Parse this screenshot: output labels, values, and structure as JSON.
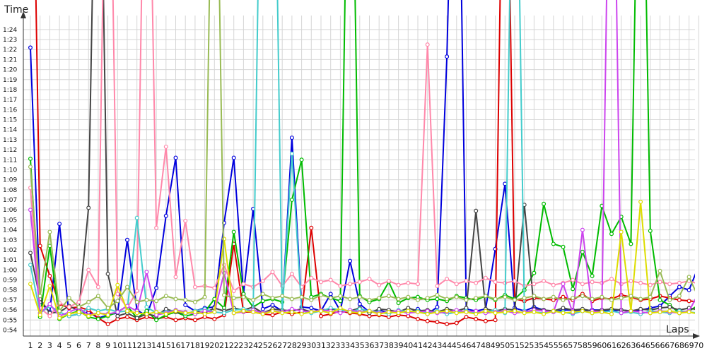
{
  "chart_data": {
    "type": "line",
    "ylabel": "Time",
    "xlabel": "Laps",
    "grid": true,
    "x_ticks": [
      "1",
      "2",
      "3",
      "4",
      "5",
      "6",
      "7",
      "8",
      "9",
      "10",
      "11",
      "12",
      "13",
      "14",
      "15",
      "16",
      "17",
      "18",
      "19",
      "20",
      "21",
      "22",
      "23",
      "24",
      "25",
      "26",
      "27",
      "28",
      "29",
      "30",
      "31",
      "32",
      "33",
      "34",
      "35",
      "36",
      "37",
      "38",
      "39",
      "40",
      "41",
      "42",
      "43",
      "44",
      "45",
      "46",
      "47",
      "48",
      "49",
      "50",
      "51",
      "52",
      "53",
      "54",
      "55",
      "56",
      "57",
      "58",
      "59",
      "60",
      "61",
      "62",
      "63",
      "64",
      "65",
      "66",
      "67",
      "68",
      "69",
      "70"
    ],
    "y_ticks": [
      "0:54",
      "0:55",
      "0:56",
      "0:57",
      "0:58",
      "0:59",
      "1:00",
      "1:01",
      "1:02",
      "1:03",
      "1:04",
      "1:05",
      "1:06",
      "1:07",
      "1:08",
      "1:09",
      "1:10",
      "1:11",
      "1:12",
      "1:13",
      "1:14",
      "1:15",
      "1:16",
      "1:17",
      "1:18",
      "1:19",
      "1:20",
      "1:21",
      "1:22",
      "1:23",
      "1:24"
    ],
    "y_range_seconds": [
      53.4,
      85.4
    ],
    "x_range": [
      1,
      70
    ],
    "series": [
      {
        "color": "#0000dd",
        "values": [
          82.2,
          56.8,
          55.8,
          64.6,
          55.4,
          55.6,
          55.8,
          55.2,
          55.5,
          55.7,
          63.0,
          56.0,
          55.4,
          58.2,
          65.4,
          71.2,
          56.5,
          55.9,
          56.2,
          56.3,
          64.7,
          71.2,
          57.6,
          66.1,
          56.1,
          56.5,
          55.9,
          73.2,
          56.3,
          56.2,
          55.9,
          57.6,
          55.9,
          60.9,
          56.6,
          55.8,
          56.0,
          55.7,
          55.9,
          55.7,
          56.1,
          55.6,
          56.3,
          81.3,
          120,
          56.1,
          55.9,
          56.1,
          62.1,
          68.6,
          56.2,
          55.9,
          56.3,
          56.0,
          55.8,
          56.0,
          56.0,
          55.9,
          56.0,
          56.0,
          55.9,
          56.0,
          55.9,
          56.0,
          56.2,
          56.4,
          57.4,
          58.3,
          58.0,
          60.4
        ]
      },
      {
        "color": "#dd0000",
        "values": [
          120,
          62.4,
          59.4,
          56.6,
          56.2,
          56.3,
          56.0,
          55.2,
          54.6,
          55.1,
          55.3,
          55.0,
          55.3,
          55.1,
          55.3,
          55.0,
          55.2,
          55.0,
          55.3,
          55.1,
          55.5,
          62.6,
          55.8,
          55.8,
          55.6,
          55.5,
          55.8,
          55.6,
          55.8,
          64.2,
          55.4,
          55.6,
          55.9,
          55.7,
          55.6,
          55.4,
          55.5,
          55.3,
          55.5,
          55.4,
          55.1,
          54.9,
          54.8,
          54.6,
          54.7,
          55.3,
          55.1,
          54.9,
          55.0,
          120,
          57.1,
          56.9,
          57.2,
          57.1,
          57.0,
          57.3,
          57.0,
          57.6,
          56.9,
          57.2,
          57.1,
          57.5,
          57.3,
          57.0,
          57.1,
          57.4,
          57.2,
          57.0,
          56.9,
          56.8
        ]
      },
      {
        "color": "#00bb00",
        "values": [
          71.1,
          55.3,
          62.4,
          55.1,
          55.6,
          55.9,
          55.3,
          55.1,
          55.4,
          55.8,
          56.4,
          55.2,
          55.9,
          55.0,
          55.5,
          55.8,
          55.4,
          55.6,
          55.8,
          57.1,
          56.2,
          63.8,
          57.6,
          56.3,
          56.9,
          57.1,
          56.8,
          67.0,
          71.0,
          57.3,
          57.6,
          57.2,
          56.9,
          120,
          57.4,
          56.8,
          57.1,
          58.8,
          56.7,
          57.2,
          57.3,
          57.0,
          57.1,
          56.9,
          57.4,
          57.2,
          57.0,
          57.4,
          57.0,
          57.5,
          57.1,
          58.0,
          59.7,
          66.6,
          62.6,
          62.3,
          58.1,
          61.8,
          59.4,
          66.4,
          63.6,
          65.3,
          62.6,
          120,
          63.9,
          57.0,
          56.5,
          55.7,
          55.9,
          56.5
        ]
      },
      {
        "color": "#444444",
        "values": [
          61.7,
          57.1,
          55.7,
          55.8,
          56.4,
          55.9,
          66.2,
          120,
          59.6,
          55.4,
          55.7,
          55.2,
          55.6,
          55.4,
          56.1,
          55.8,
          55.6,
          55.9,
          55.7,
          56.2,
          55.9,
          56.2,
          56.0,
          56.3,
          55.7,
          56.1,
          56.0,
          55.9,
          56.1,
          55.8,
          56.0,
          56.1,
          56.0,
          55.9,
          56.2,
          55.7,
          56.1,
          56.0,
          55.8,
          56.2,
          55.9,
          56.0,
          55.8,
          56.1,
          55.9,
          56.2,
          65.9,
          56.1,
          55.9,
          56.1,
          56.0,
          66.5,
          56.1,
          56.0,
          55.9,
          56.2,
          56.0,
          56.1,
          55.9,
          56.0,
          56.1,
          56.0,
          55.9,
          56.1,
          56.0,
          56.2,
          56.3,
          56.0,
          56.2,
          56.0
        ]
      },
      {
        "color": "#ff88aa",
        "values": [
          68.2,
          56.2,
          55.4,
          56.7,
          56.3,
          56.8,
          60.0,
          58.3,
          120,
          57.6,
          56.2,
          57.9,
          120,
          64.2,
          72.3,
          59.3,
          64.9,
          58.3,
          58.4,
          58.2,
          60.5,
          57.9,
          58.6,
          58.3,
          58.9,
          59.8,
          58.4,
          59.6,
          58.3,
          59.2,
          58.8,
          59.0,
          58.4,
          58.6,
          58.8,
          59.1,
          58.5,
          58.9,
          58.5,
          58.7,
          58.6,
          82.5,
          58.4,
          59.1,
          58.6,
          58.9,
          58.7,
          59.2,
          58.8,
          58.7,
          58.9,
          58.4,
          58.6,
          58.9,
          58.5,
          58.7,
          59.0,
          58.6,
          58.8,
          58.7,
          59.1,
          58.6,
          58.9,
          58.7,
          58.5,
          58.8,
          58.6,
          58.7,
          58.9,
          58.6
        ]
      },
      {
        "color": "#44cccc",
        "values": [
          60.5,
          55.7,
          56.4,
          55.8,
          55.4,
          55.6,
          56.2,
          55.9,
          56.1,
          55.8,
          55.9,
          65.2,
          56.3,
          55.7,
          55.8,
          56.0,
          55.6,
          55.9,
          56.1,
          55.8,
          55.7,
          56.0,
          56.1,
          55.9,
          120,
          120,
          55.8,
          71.6,
          55.9,
          55.7,
          55.9,
          56.2,
          56.0,
          55.8,
          56.1,
          55.9,
          55.8,
          55.6,
          56.0,
          55.8,
          55.9,
          55.7,
          55.9,
          55.6,
          55.8,
          55.9,
          55.7,
          55.8,
          56.0,
          55.7,
          120,
          55.9,
          55.8,
          55.7,
          55.9,
          55.8,
          55.6,
          55.9,
          55.7,
          55.8,
          55.9,
          55.7,
          55.8,
          55.6,
          55.9,
          55.8,
          55.7,
          55.9,
          55.8,
          55.7
        ]
      },
      {
        "color": "#cc44ee",
        "values": [
          66.0,
          55.7,
          56.6,
          55.4,
          55.8,
          56.2,
          55.5,
          55.7,
          55.6,
          55.8,
          56.4,
          55.9,
          59.8,
          55.5,
          55.7,
          56.0,
          55.8,
          55.6,
          55.9,
          55.8,
          59.7,
          55.7,
          55.8,
          56.0,
          55.7,
          55.9,
          55.8,
          56.1,
          55.9,
          55.8,
          56.0,
          55.9,
          55.7,
          56.0,
          55.8,
          55.9,
          55.7,
          55.8,
          55.9,
          55.7,
          55.8,
          55.9,
          55.7,
          55.8,
          56.0,
          55.8,
          55.9,
          55.7,
          55.8,
          55.9,
          55.7,
          55.8,
          56.0,
          55.9,
          55.8,
          58.6,
          55.7,
          64.0,
          55.9,
          55.8,
          120,
          55.7,
          55.9,
          55.8,
          55.7,
          55.9,
          55.8,
          55.7,
          55.9,
          57.7
        ]
      },
      {
        "color": "#dddd00",
        "values": [
          58.6,
          55.5,
          58.4,
          55.2,
          55.6,
          55.8,
          55.4,
          55.7,
          55.5,
          58.5,
          55.9,
          55.7,
          55.6,
          55.8,
          55.6,
          55.9,
          55.7,
          55.8,
          55.6,
          55.8,
          63.1,
          55.7,
          55.9,
          55.8,
          55.6,
          55.9,
          55.7,
          55.8,
          55.6,
          55.8,
          55.9,
          55.7,
          56.2,
          55.8,
          55.7,
          55.9,
          55.6,
          55.8,
          55.7,
          55.9,
          55.8,
          55.6,
          55.8,
          55.9,
          55.7,
          55.8,
          55.6,
          55.9,
          55.7,
          55.8,
          55.9,
          55.7,
          55.8,
          55.6,
          55.9,
          55.7,
          55.8,
          55.9,
          55.7,
          55.8,
          55.6,
          63.8,
          55.9,
          66.8,
          55.7,
          55.8,
          55.9,
          55.7,
          55.8,
          55.6
        ]
      },
      {
        "color": "#99bb55",
        "values": [
          70.3,
          57.4,
          63.8,
          55.9,
          57.2,
          56.3,
          56.8,
          57.4,
          56.2,
          56.9,
          58.3,
          56.8,
          57.0,
          56.9,
          57.4,
          57.1,
          57.0,
          56.8,
          57.3,
          120,
          57.5,
          57.2,
          57.3,
          57.0,
          57.6,
          57.2,
          57.4,
          57.1,
          57.3,
          57.0,
          57.5,
          57.2,
          57.4,
          57.1,
          57.3,
          57.0,
          57.2,
          57.4,
          57.1,
          57.3,
          57.0,
          57.2,
          57.5,
          57.1,
          57.3,
          57.0,
          57.2,
          57.4,
          57.1,
          57.3,
          57.0,
          57.2,
          57.4,
          57.1,
          57.3,
          57.0,
          57.2,
          57.4,
          57.1,
          57.3,
          57.0,
          57.2,
          57.4,
          57.1,
          57.3,
          59.9,
          57.0,
          57.4,
          59.3,
          57.2
        ]
      }
    ]
  }
}
